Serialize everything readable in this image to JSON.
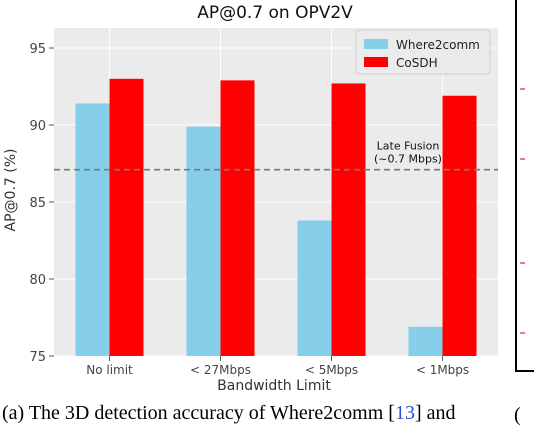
{
  "chart_data": {
    "type": "bar",
    "title": "AP@0.7 on OPV2V",
    "xlabel": "Bandwidth Limit",
    "ylabel": "AP@0.7 (%)",
    "ylim": [
      75,
      96.3
    ],
    "yticks": [
      75,
      80,
      85,
      90,
      95
    ],
    "grid": true,
    "legend_position": "top-right",
    "categories": [
      "No limit",
      "< 27Mbps",
      "< 5Mbps",
      "< 1Mbps"
    ],
    "series": [
      {
        "name": "Where2comm",
        "color": "#87ceeb",
        "values": [
          91.4,
          89.9,
          83.8,
          76.9
        ]
      },
      {
        "name": "CoSDH",
        "color": "#ff0000",
        "values": [
          93.0,
          92.9,
          92.7,
          91.9
        ]
      }
    ],
    "reference_line": {
      "value": 87.1,
      "label_line1": "Late Fusion",
      "label_line2": "(~0.7 Mbps)"
    }
  },
  "caption": {
    "before_ref": "(a) The 3D detection accuracy of Where2comm [",
    "ref": "13",
    "after_ref": "] and"
  },
  "right_panel": {
    "letter": "("
  }
}
